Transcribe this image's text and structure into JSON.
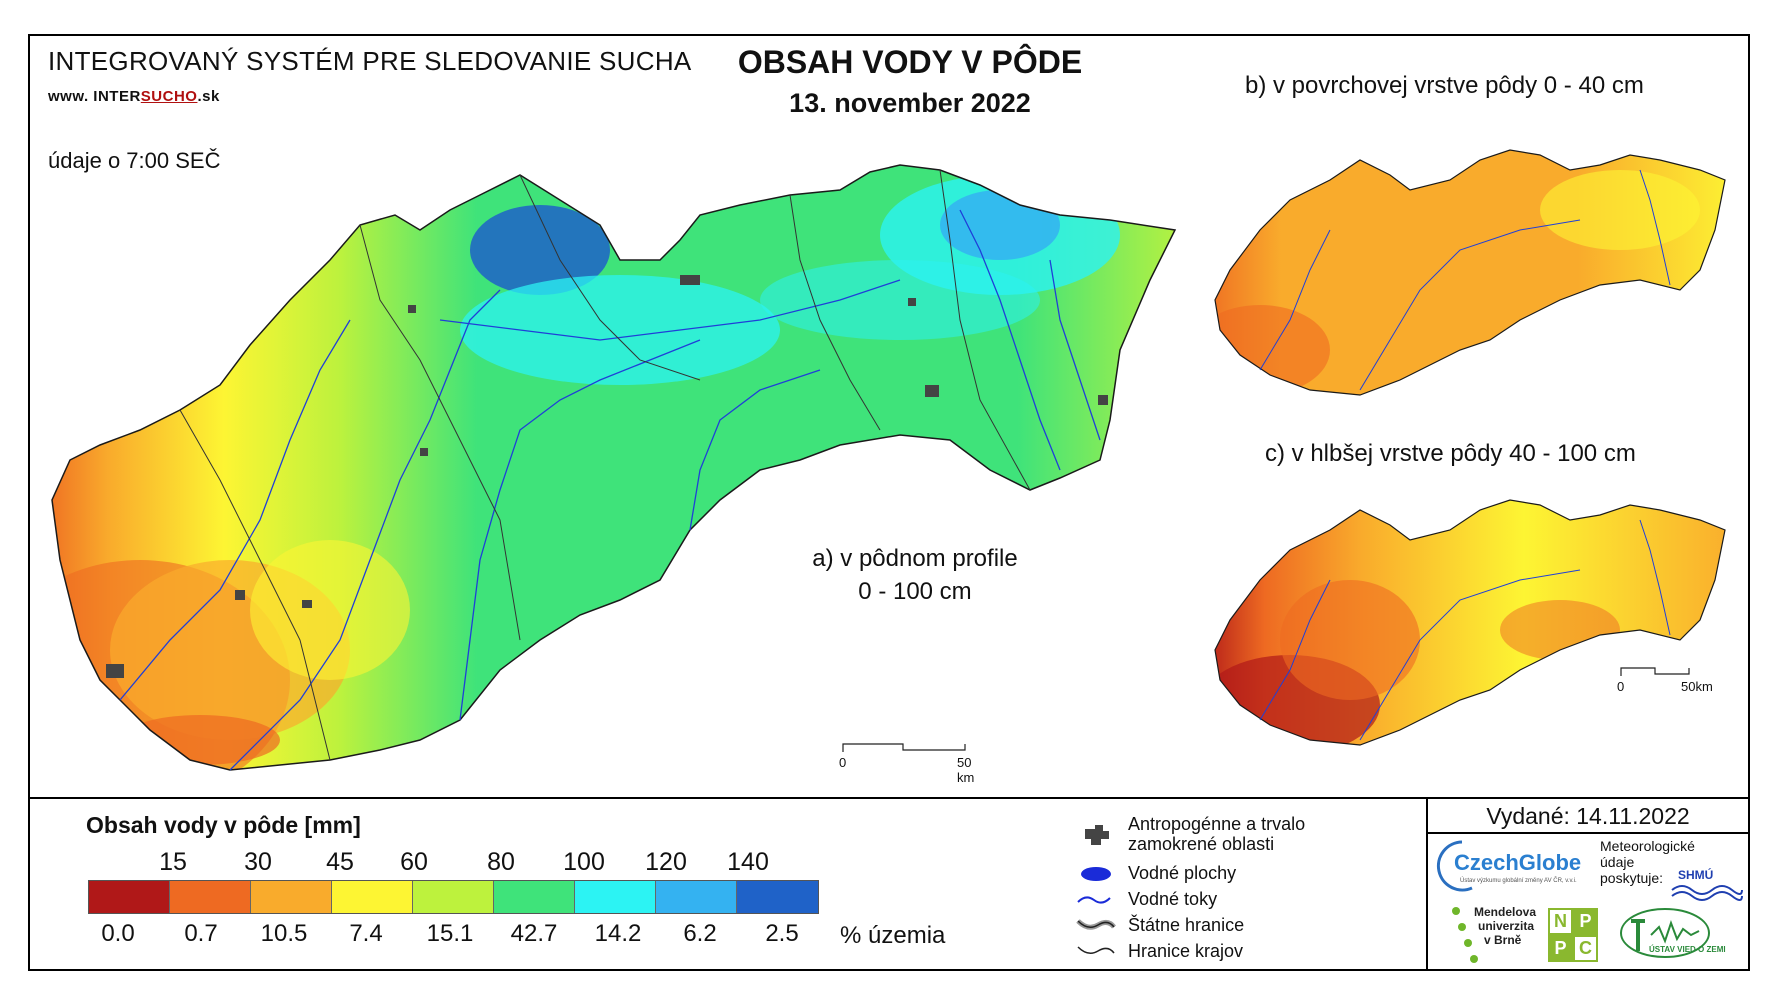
{
  "header": {
    "org_title": "INTEGROVANÝ SYSTÉM PRE SLEDOVANIE SUCHA",
    "url_prefix": "www. INTER",
    "url_highlight": "SUCHO",
    "url_suffix": ".sk",
    "update_time": "údaje o 7:00 SEČ",
    "title": "OBSAH VODY V PÔDE",
    "date": "13. november 2022"
  },
  "maps": {
    "a_line1": "a) v pôdnom profile",
    "a_line2": "0 - 100 cm",
    "b_label": "b) v povrchovej vrstve pôdy 0 - 40 cm",
    "c_label": "c) v hlbšej vrstve pôdy 40 - 100 cm",
    "scale_a": {
      "start": "0",
      "end": "50 km"
    },
    "scale_c": {
      "start": "0",
      "end": "50km"
    }
  },
  "legend": {
    "title": "Obsah vody v pôde  [mm]",
    "thresholds": [
      "15",
      "30",
      "45",
      "60",
      "80",
      "100",
      "120",
      "140"
    ],
    "classes": [
      {
        "color": "#b01818",
        "percent": "0.0"
      },
      {
        "color": "#ee6a22",
        "percent": "0.7"
      },
      {
        "color": "#f9ab2c",
        "percent": "10.5"
      },
      {
        "color": "#fdf533",
        "percent": "7.4"
      },
      {
        "color": "#bdf23d",
        "percent": "15.1"
      },
      {
        "color": "#3fe37a",
        "percent": "42.7"
      },
      {
        "color": "#2cf3f3",
        "percent": "14.2"
      },
      {
        "color": "#34b2f1",
        "percent": "6.2"
      },
      {
        "color": "#1f62c8",
        "percent": "2.5"
      }
    ],
    "percent_unit": "% územia"
  },
  "key": {
    "urban": "Antropogénne a trvalo\nzamokrené oblasti",
    "water_bodies": "Vodné plochy",
    "rivers": "Vodné toky",
    "state_border": "Štátne hranice",
    "region_border": "Hranice krajov"
  },
  "issued": "Vydané: 14.11.2022",
  "partners": {
    "czechglobe": "CzechGlobe",
    "czechglobe_sub": "Ústav výzkumu globální změny AV ČR, v.v.i.",
    "meteo_line1": "Meteorologické",
    "meteo_line2": "údaje",
    "meteo_line3": "poskytuje:",
    "shmu": "SHMÚ",
    "mendel_line1": "Mendelova",
    "mendel_line2": "univerzita",
    "mendel_line3": "v Brně",
    "nppc": [
      "N",
      "P",
      "P",
      "C"
    ],
    "uvz": "ÚSTAV VIED O ZEMI"
  }
}
